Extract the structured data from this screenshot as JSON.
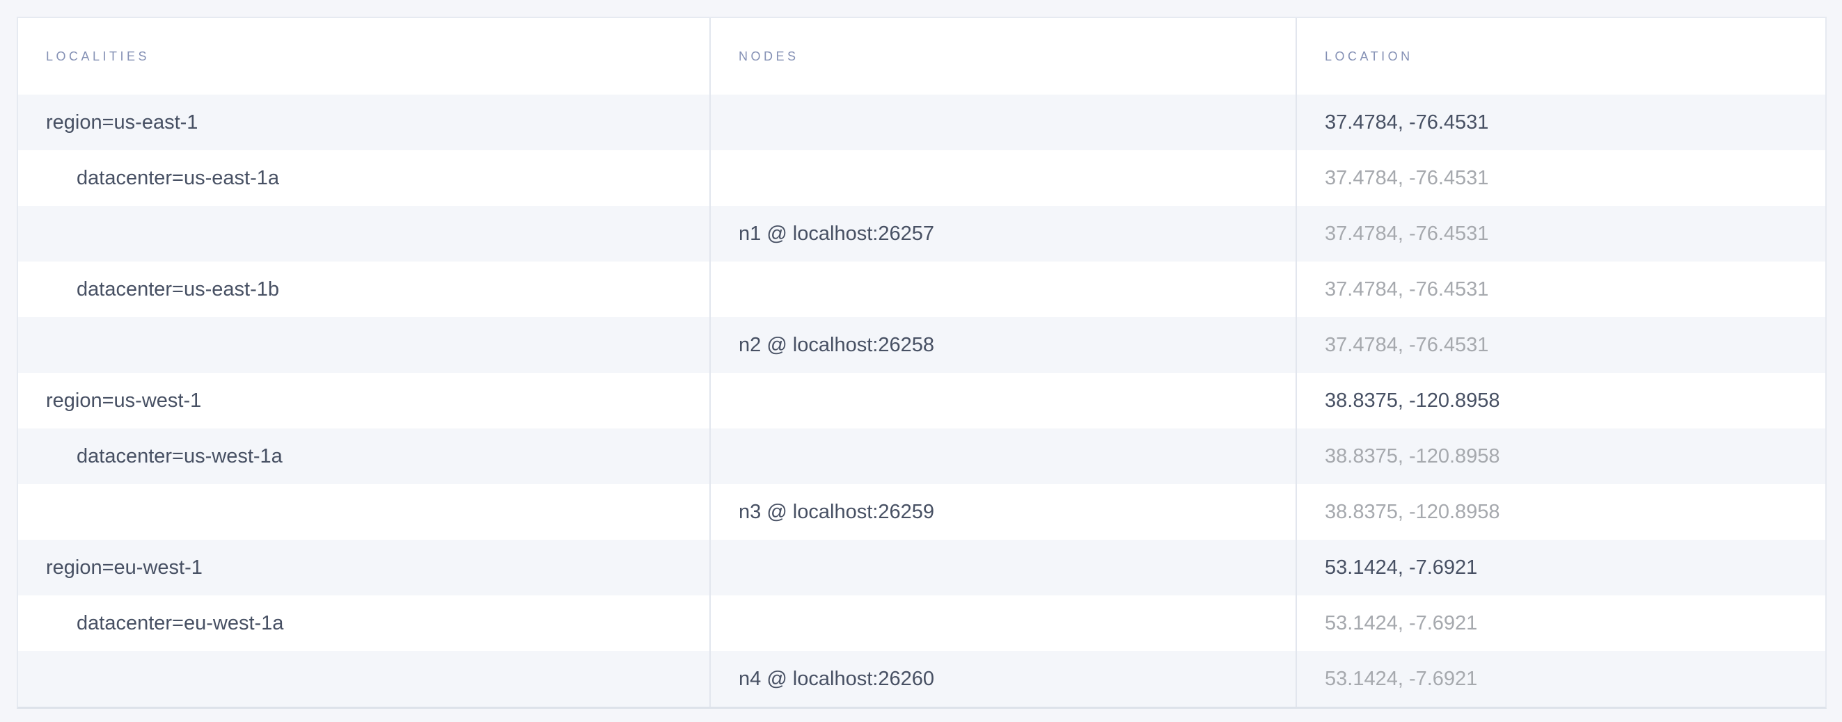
{
  "page": {
    "background_color": "#f5f6fa",
    "row_stripe_color": "#f4f6fa",
    "border_color": "#e2e6ee",
    "header_text_color": "#8591b5",
    "text_color": "#475063",
    "muted_text_color": "#a6a9ae"
  },
  "table": {
    "columns": [
      {
        "key": "locality",
        "label": "LOCALITIES"
      },
      {
        "key": "node",
        "label": "NODES"
      },
      {
        "key": "location",
        "label": "LOCATION"
      }
    ],
    "rows": [
      {
        "locality": "region=us-east-1",
        "indent": 0,
        "node": "",
        "location": "37.4784, -76.4531",
        "muted": false
      },
      {
        "locality": "datacenter=us-east-1a",
        "indent": 1,
        "node": "",
        "location": "37.4784, -76.4531",
        "muted": true
      },
      {
        "locality": "",
        "indent": 0,
        "node": "n1 @ localhost:26257",
        "location": "37.4784, -76.4531",
        "muted": true
      },
      {
        "locality": "datacenter=us-east-1b",
        "indent": 1,
        "node": "",
        "location": "37.4784, -76.4531",
        "muted": true
      },
      {
        "locality": "",
        "indent": 0,
        "node": "n2 @ localhost:26258",
        "location": "37.4784, -76.4531",
        "muted": true
      },
      {
        "locality": "region=us-west-1",
        "indent": 0,
        "node": "",
        "location": "38.8375, -120.8958",
        "muted": false
      },
      {
        "locality": "datacenter=us-west-1a",
        "indent": 1,
        "node": "",
        "location": "38.8375, -120.8958",
        "muted": true
      },
      {
        "locality": "",
        "indent": 0,
        "node": "n3 @ localhost:26259",
        "location": "38.8375, -120.8958",
        "muted": true
      },
      {
        "locality": "region=eu-west-1",
        "indent": 0,
        "node": "",
        "location": "53.1424, -7.6921",
        "muted": false
      },
      {
        "locality": "datacenter=eu-west-1a",
        "indent": 1,
        "node": "",
        "location": "53.1424, -7.6921",
        "muted": true
      },
      {
        "locality": "",
        "indent": 0,
        "node": "n4 @ localhost:26260",
        "location": "53.1424, -7.6921",
        "muted": true
      }
    ]
  }
}
